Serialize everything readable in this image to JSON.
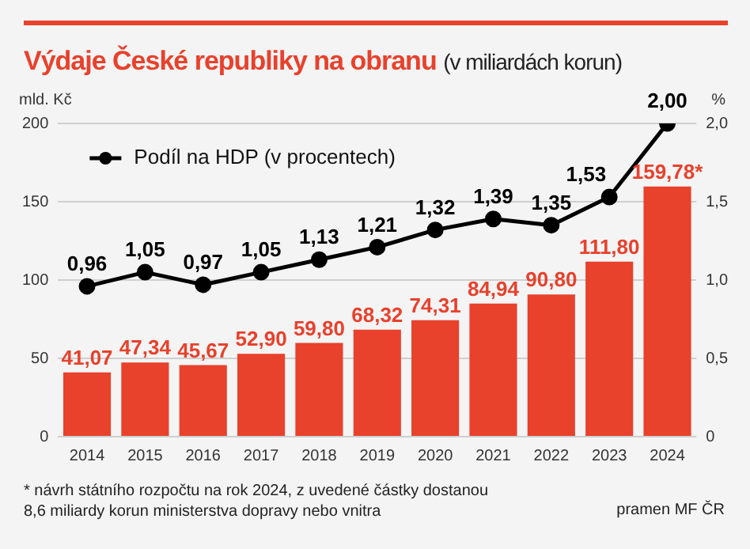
{
  "chart_data": {
    "type": "bar",
    "title": "Výdaje České republiky na obranu",
    "subtitle": "(v miliardách korun)",
    "ylabel": "mld. Kč",
    "y2label": "%",
    "categories": [
      "2014",
      "2015",
      "2016",
      "2017",
      "2018",
      "2019",
      "2020",
      "2021",
      "2022",
      "2023",
      "2024"
    ],
    "series": [
      {
        "color": "#e8412c",
        "values": [
          41.07,
          47.34,
          45.67,
          52.9,
          59.8,
          68.32,
          74.31,
          84.94,
          90.8,
          111.8,
          159.78
        ],
        "value_labels": [
          "41,07",
          "47,34",
          "45,67",
          "52,90",
          "59,80",
          "68,32",
          "74,31",
          "84,94",
          "90,80",
          "111,80",
          "159,78*"
        ]
      },
      {
        "type": "line",
        "name": "Podíl na HDP (v procentech)",
        "axis": "y2",
        "color": "#000000",
        "values": [
          0.96,
          1.05,
          0.97,
          1.05,
          1.13,
          1.21,
          1.32,
          1.39,
          1.35,
          1.53,
          2.0
        ],
        "value_labels": [
          "0,96",
          "1,05",
          "0,97",
          "1,05",
          "1,13",
          "1,21",
          "1,32",
          "1,39",
          "1,35",
          "1,53",
          "2,00"
        ]
      }
    ],
    "ylim": [
      0,
      200
    ],
    "yticks": [
      0,
      50,
      100,
      150,
      200
    ],
    "y2lim": [
      0,
      2
    ],
    "y2ticks": [
      {
        "value": 0,
        "label": "0"
      },
      {
        "value": 0.5,
        "label": "0,5"
      },
      {
        "value": 1,
        "label": "1,0"
      },
      {
        "value": 1.5,
        "label": "1,5"
      },
      {
        "value": 2,
        "label": "2,0"
      }
    ],
    "grid": "y",
    "legend": "top left",
    "marker": "circle",
    "annotations": [
      "* návrh státního rozpočtu na rok 2024, z uvedené částky dostanou 8,6 miliardy korun ministerstva dopravy nebo vnitra",
      "pramen MF ČR"
    ]
  }
}
